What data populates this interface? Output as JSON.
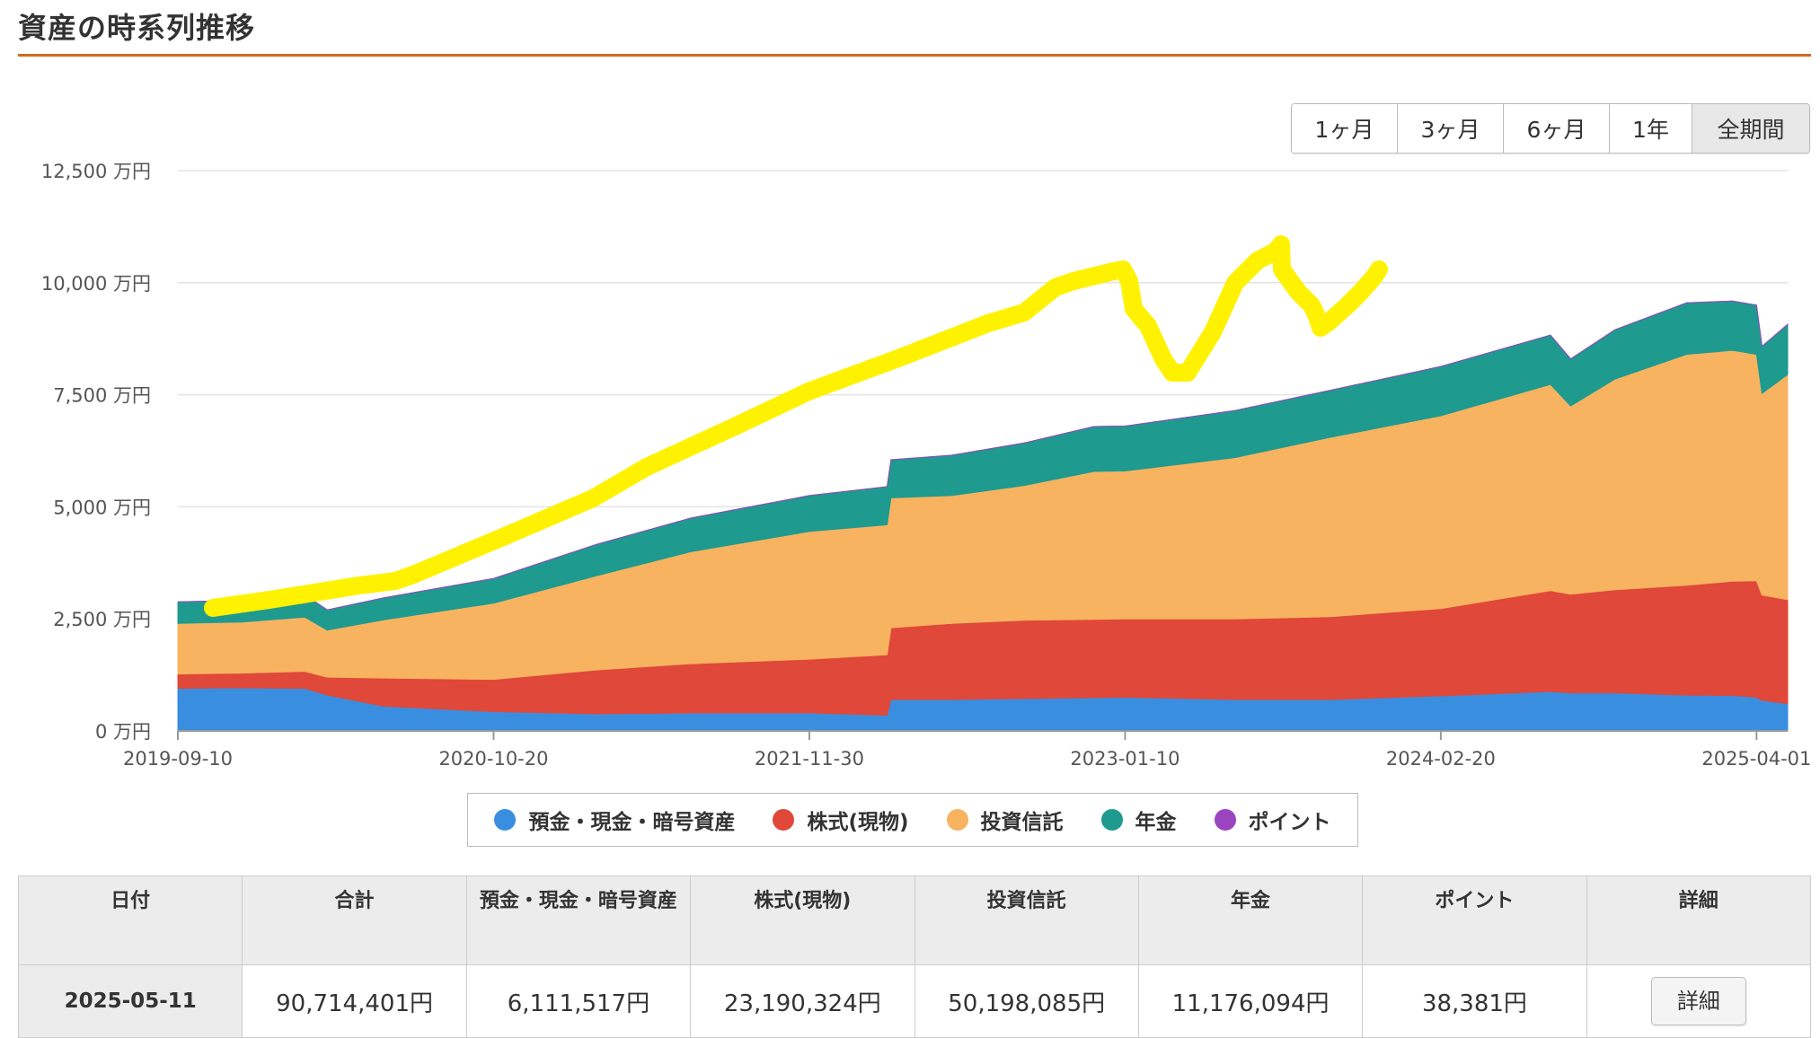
{
  "page": {
    "title": "資産の時系列推移"
  },
  "period_buttons": [
    {
      "label": "1ヶ月",
      "active": false
    },
    {
      "label": "3ヶ月",
      "active": false
    },
    {
      "label": "6ヶ月",
      "active": false
    },
    {
      "label": "1年",
      "active": false
    },
    {
      "label": "全期間",
      "active": true
    }
  ],
  "colors": {
    "deposit": "#3a8ee0",
    "stock": "#e0483a",
    "fund": "#f8b360",
    "pension": "#1e9a8f",
    "point": "#9b44c0",
    "highlight": "#fff200",
    "accent": "#d2691e"
  },
  "chart_data": {
    "type": "area",
    "stacked": true,
    "y_unit": "万円",
    "ylim": [
      0,
      12500
    ],
    "y_ticks": [
      0,
      2500,
      5000,
      7500,
      10000,
      12500
    ],
    "y_tick_labels": [
      "0 万円",
      "2,500 万円",
      "5,000 万円",
      "7,500 万円",
      "10,000 万円",
      "12,500 万円"
    ],
    "x_range": [
      "2019-09-10",
      "2025-05-11"
    ],
    "x_ticks": [
      "2019-09-10",
      "2020-10-20",
      "2021-11-30",
      "2023-01-10",
      "2024-02-20",
      "2025-04-01"
    ],
    "grid": true,
    "legend_position": "bottom",
    "x": [
      "2019-09-10",
      "2019-12-01",
      "2020-02-20",
      "2020-03-20",
      "2020-06-01",
      "2020-10-20",
      "2021-03-01",
      "2021-07-01",
      "2021-11-30",
      "2022-03-10",
      "2022-03-15",
      "2022-06-01",
      "2022-09-01",
      "2022-12-01",
      "2023-01-10",
      "2023-06-01",
      "2023-10-01",
      "2024-02-20",
      "2024-07-10",
      "2024-08-05",
      "2024-10-01",
      "2025-01-01",
      "2025-03-01",
      "2025-04-01",
      "2025-04-08",
      "2025-05-11"
    ],
    "series": [
      {
        "name": "預金・現金・暗号資産",
        "key": "deposit",
        "values": [
          950,
          960,
          950,
          800,
          550,
          430,
          380,
          400,
          400,
          350,
          700,
          700,
          720,
          740,
          750,
          700,
          700,
          780,
          880,
          850,
          850,
          800,
          790,
          750,
          680,
          611
        ]
      },
      {
        "name": "株式(現物)",
        "key": "stock",
        "values": [
          320,
          330,
          380,
          400,
          630,
          720,
          980,
          1100,
          1200,
          1350,
          1600,
          1700,
          1750,
          1750,
          1750,
          1800,
          1850,
          1950,
          2250,
          2200,
          2300,
          2450,
          2550,
          2600,
          2350,
          2319
        ]
      },
      {
        "name": "投資信託",
        "key": "fund",
        "values": [
          1130,
          1140,
          1210,
          1050,
          1300,
          1700,
          2100,
          2500,
          2850,
          2900,
          2900,
          2850,
          3000,
          3300,
          3300,
          3600,
          4000,
          4300,
          4600,
          4200,
          4700,
          5150,
          5150,
          5050,
          4500,
          5020
        ]
      },
      {
        "name": "年金",
        "key": "pension",
        "values": [
          480,
          480,
          500,
          450,
          490,
          550,
          700,
          750,
          800,
          850,
          850,
          900,
          950,
          1000,
          1000,
          1050,
          1050,
          1100,
          1100,
          1050,
          1100,
          1150,
          1100,
          1100,
          1050,
          1118
        ]
      },
      {
        "name": "ポイント",
        "key": "point",
        "values": [
          0,
          0,
          0,
          0,
          0,
          0,
          0,
          0,
          0,
          0,
          0,
          0,
          0,
          0,
          0,
          0,
          0,
          0,
          0,
          0,
          0,
          0,
          0,
          0,
          0,
          4
        ]
      }
    ]
  },
  "table": {
    "headers": [
      "日付",
      "合計",
      "預金・現金・暗号資産",
      "株式(現物)",
      "投資信託",
      "年金",
      "ポイント",
      "詳細"
    ],
    "row": {
      "date": "2025-05-11",
      "total": "90,714,401円",
      "deposit": "6,111,517円",
      "stock": "23,190,324円",
      "fund": "50,198,085円",
      "pension": "11,176,094円",
      "point": "38,381円",
      "detail_label": "詳細"
    }
  }
}
